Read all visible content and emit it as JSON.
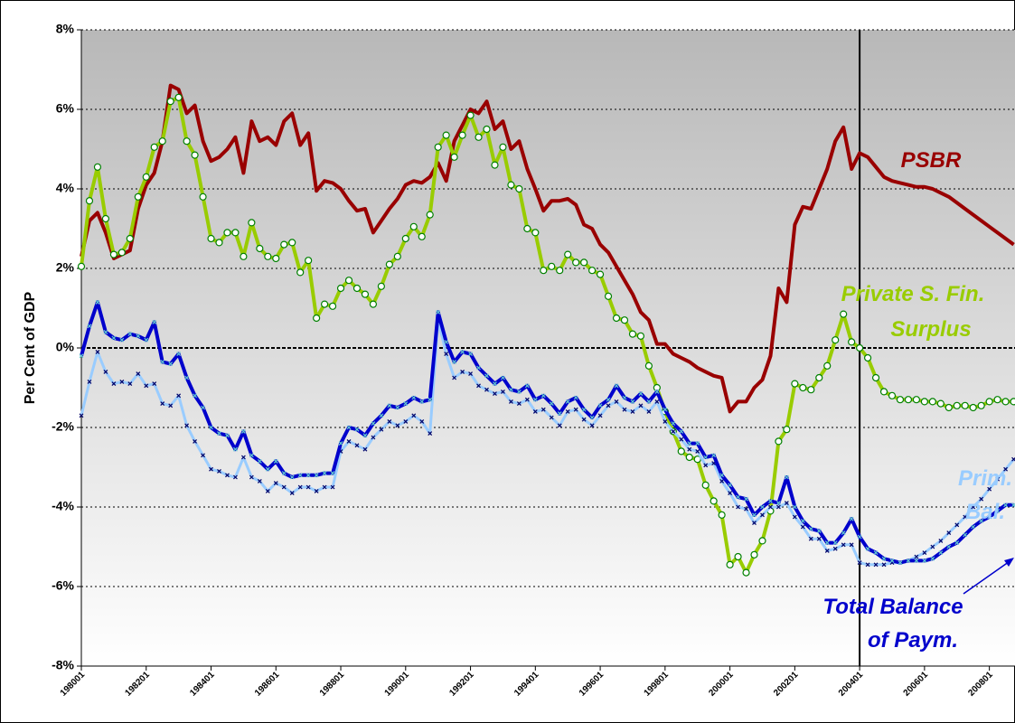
{
  "chart_data": {
    "type": "line",
    "y_axis_label": "Per Cent of GDP",
    "categories": [
      "198001",
      null,
      null,
      null,
      null,
      null,
      null,
      null,
      "198201",
      null,
      null,
      null,
      null,
      null,
      null,
      null,
      "198401",
      null,
      null,
      null,
      null,
      null,
      null,
      null,
      "198601",
      null,
      null,
      null,
      null,
      null,
      null,
      null,
      "198801",
      null,
      null,
      null,
      null,
      null,
      null,
      null,
      "199001",
      null,
      null,
      null,
      null,
      null,
      null,
      null,
      "199201",
      null,
      null,
      null,
      null,
      null,
      null,
      null,
      "199401",
      null,
      null,
      null,
      null,
      null,
      null,
      null,
      "199601",
      null,
      null,
      null,
      null,
      null,
      null,
      null,
      "199801",
      null,
      null,
      null,
      null,
      null,
      null,
      null,
      "200001",
      null,
      null,
      null,
      null,
      null,
      null,
      null,
      "200201",
      null,
      null,
      null,
      null,
      null,
      null,
      null,
      "200401",
      null,
      null,
      null,
      null,
      null,
      null,
      null,
      "200601",
      null,
      null,
      null,
      null,
      null,
      null,
      null,
      "200801",
      null,
      null,
      null
    ],
    "ylim": [
      -8,
      8
    ],
    "yticks": [
      {
        "value": -8,
        "label": "-8%"
      },
      {
        "value": -6,
        "label": "-6%"
      },
      {
        "value": -4,
        "label": "-4%"
      },
      {
        "value": -2,
        "label": "-2%"
      },
      {
        "value": 0,
        "label": "0%"
      },
      {
        "value": 2,
        "label": "2%"
      },
      {
        "value": 4,
        "label": "4%"
      },
      {
        "value": 6,
        "label": "6%"
      },
      {
        "value": 8,
        "label": "8%"
      }
    ],
    "grid": true,
    "series": [
      {
        "label_lines": [
          "PSBR"
        ],
        "color": "#990000",
        "marker": "none",
        "values": [
          2.3,
          3.2,
          3.4,
          2.9,
          2.25,
          2.35,
          2.45,
          3.5,
          4.1,
          4.4,
          5.2,
          6.6,
          6.5,
          5.9,
          6.1,
          5.2,
          4.7,
          4.8,
          5.0,
          5.3,
          4.4,
          5.7,
          5.2,
          5.3,
          5.1,
          5.7,
          5.9,
          5.1,
          5.4,
          3.95,
          4.2,
          4.15,
          4.0,
          3.7,
          3.45,
          3.5,
          2.9,
          3.2,
          3.5,
          3.75,
          4.1,
          4.2,
          4.15,
          4.3,
          4.65,
          4.2,
          5.2,
          5.6,
          6.0,
          5.9,
          6.2,
          5.5,
          5.7,
          5.0,
          5.2,
          4.5,
          4.0,
          3.45,
          3.7,
          3.7,
          3.75,
          3.6,
          3.1,
          3.0,
          2.6,
          2.4,
          2.05,
          1.7,
          1.35,
          0.9,
          0.7,
          0.1,
          0.1,
          -0.15,
          -0.25,
          -0.35,
          -0.5,
          -0.6,
          -0.7,
          -0.75,
          -1.6,
          -1.35,
          -1.35,
          -1.0,
          -0.8,
          -0.2,
          1.5,
          1.15,
          3.1,
          3.55,
          3.5,
          4.0,
          4.5,
          5.2,
          5.55,
          4.5,
          4.9,
          4.8,
          4.55,
          4.3,
          4.2,
          4.15,
          4.1,
          4.05,
          4.05,
          4.0,
          3.9,
          3.8,
          3.65,
          3.5,
          3.35,
          3.2,
          3.05,
          2.9,
          2.75,
          2.6
        ]
      },
      {
        "label_lines": [
          "Private S. Fin.",
          "Surplus"
        ],
        "color": "#99cc00",
        "marker": "circle",
        "values": [
          2.05,
          3.7,
          4.55,
          3.25,
          2.35,
          2.4,
          2.75,
          3.8,
          4.3,
          5.05,
          5.2,
          6.2,
          6.3,
          5.2,
          4.85,
          3.8,
          2.75,
          2.65,
          2.9,
          2.9,
          2.3,
          3.15,
          2.5,
          2.3,
          2.25,
          2.6,
          2.65,
          1.9,
          2.2,
          0.75,
          1.1,
          1.05,
          1.5,
          1.7,
          1.5,
          1.35,
          1.1,
          1.55,
          2.1,
          2.3,
          2.75,
          3.05,
          2.8,
          3.35,
          5.05,
          5.35,
          4.8,
          5.35,
          5.85,
          5.3,
          5.5,
          4.6,
          5.05,
          4.1,
          4.0,
          3.0,
          2.9,
          1.95,
          2.05,
          1.95,
          2.35,
          2.15,
          2.15,
          1.95,
          1.85,
          1.3,
          0.75,
          0.7,
          0.35,
          0.3,
          -0.45,
          -1.0,
          -1.6,
          -2.1,
          -2.6,
          -2.75,
          -2.8,
          -3.45,
          -3.85,
          -4.2,
          -5.45,
          -5.25,
          -5.65,
          -5.2,
          -4.85,
          -4.1,
          -2.35,
          -2.05,
          -0.9,
          -1.0,
          -1.05,
          -0.75,
          -0.45,
          0.2,
          0.85,
          0.15,
          0.0,
          -0.25,
          -0.75,
          -1.1,
          -1.2,
          -1.3,
          -1.3,
          -1.3,
          -1.35,
          -1.35,
          -1.4,
          -1.5,
          -1.45,
          -1.45,
          -1.5,
          -1.45,
          -1.35,
          -1.3,
          -1.35,
          -1.35
        ]
      },
      {
        "label_lines": [
          "Prim.",
          "Bal."
        ],
        "color": "#99ccff",
        "marker": "cross",
        "values": [
          -1.7,
          -0.85,
          -0.1,
          -0.6,
          -0.9,
          -0.85,
          -0.9,
          -0.65,
          -0.95,
          -0.9,
          -1.4,
          -1.45,
          -1.2,
          -1.95,
          -2.35,
          -2.7,
          -3.05,
          -3.1,
          -3.2,
          -3.25,
          -2.75,
          -3.25,
          -3.35,
          -3.6,
          -3.4,
          -3.5,
          -3.65,
          -3.5,
          -3.5,
          -3.6,
          -3.5,
          -3.5,
          -2.6,
          -2.35,
          -2.45,
          -2.55,
          -2.25,
          -2.05,
          -1.85,
          -1.95,
          -1.85,
          -1.7,
          -1.85,
          -2.15,
          0.7,
          -0.15,
          -0.75,
          -0.6,
          -0.65,
          -0.95,
          -1.05,
          -1.15,
          -1.1,
          -1.35,
          -1.4,
          -1.3,
          -1.6,
          -1.55,
          -1.75,
          -1.95,
          -1.6,
          -1.55,
          -1.8,
          -1.95,
          -1.7,
          -1.45,
          -1.35,
          -1.55,
          -1.6,
          -1.45,
          -1.6,
          -1.35,
          -1.85,
          -2.1,
          -2.3,
          -2.55,
          -2.6,
          -2.95,
          -2.9,
          -3.35,
          -3.65,
          -4.0,
          -4.05,
          -4.4,
          -4.2,
          -4.0,
          -4.0,
          -3.9,
          -4.25,
          -4.5,
          -4.8,
          -4.8,
          -5.1,
          -5.05,
          -4.95,
          -4.95,
          -5.4,
          -5.45,
          -5.45,
          -5.45,
          -5.4,
          -5.4,
          -5.35,
          -5.25,
          -5.15,
          -5.0,
          -4.85,
          -4.65,
          -4.45,
          -4.25,
          -4.0,
          -3.8,
          -3.55,
          -3.3,
          -3.05,
          -2.8
        ]
      },
      {
        "label_lines": [
          "Total Balance",
          "of Paym."
        ],
        "color": "#0000cc",
        "marker": "cross",
        "values": [
          -0.2,
          0.55,
          1.15,
          0.4,
          0.25,
          0.2,
          0.35,
          0.3,
          0.2,
          0.65,
          -0.35,
          -0.4,
          -0.15,
          -0.75,
          -1.2,
          -1.5,
          -2.0,
          -2.15,
          -2.2,
          -2.55,
          -2.1,
          -2.7,
          -2.85,
          -3.05,
          -2.85,
          -3.15,
          -3.25,
          -3.2,
          -3.2,
          -3.2,
          -3.15,
          -3.15,
          -2.4,
          -2.0,
          -2.05,
          -2.2,
          -1.9,
          -1.7,
          -1.45,
          -1.5,
          -1.4,
          -1.25,
          -1.35,
          -1.3,
          0.9,
          0.15,
          -0.35,
          -0.1,
          -0.15,
          -0.5,
          -0.7,
          -0.9,
          -0.75,
          -1.05,
          -1.1,
          -0.95,
          -1.3,
          -1.2,
          -1.4,
          -1.65,
          -1.35,
          -1.25,
          -1.55,
          -1.75,
          -1.45,
          -1.3,
          -0.95,
          -1.25,
          -1.35,
          -1.15,
          -1.35,
          -1.1,
          -1.55,
          -1.9,
          -2.1,
          -2.4,
          -2.4,
          -2.75,
          -2.7,
          -3.2,
          -3.45,
          -3.75,
          -3.8,
          -4.2,
          -4.0,
          -3.85,
          -3.9,
          -3.25,
          -4.0,
          -4.35,
          -4.55,
          -4.6,
          -4.9,
          -4.9,
          -4.65,
          -4.3,
          -4.75,
          -5.05,
          -5.15,
          -5.3,
          -5.35,
          -5.4,
          -5.35,
          -5.35,
          -5.35,
          -5.3,
          -5.15,
          -5.0,
          -4.9,
          -4.7,
          -4.5,
          -4.35,
          -4.25,
          -4.1,
          -3.95,
          -3.95
        ]
      }
    ]
  }
}
